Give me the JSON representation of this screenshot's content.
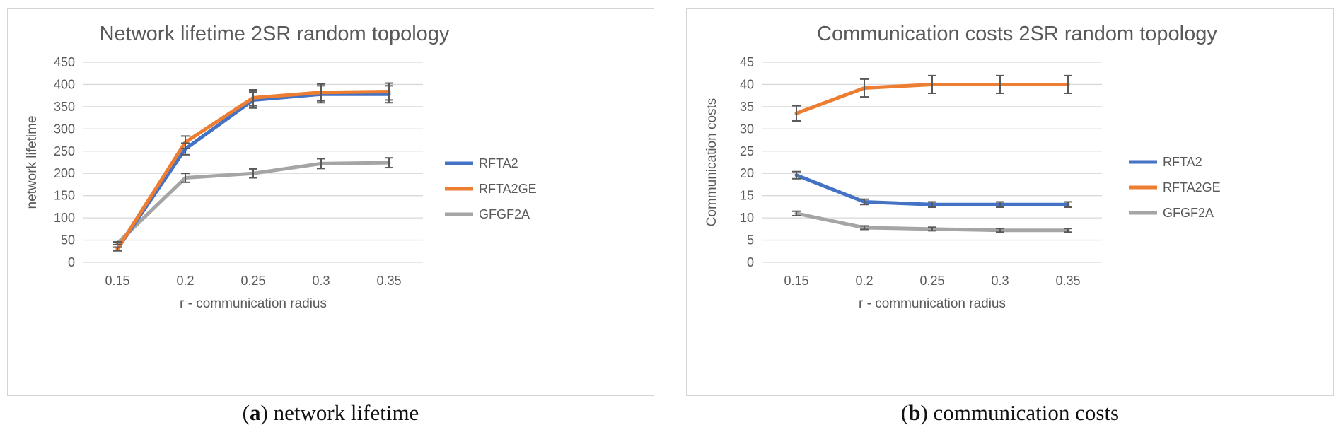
{
  "chart_data": [
    {
      "type": "line",
      "title": "Network lifetime 2SR random topology",
      "xlabel": "r - communication radius",
      "ylabel": "network lifetime",
      "categories": [
        "0.15",
        "0.2",
        "0.25",
        "0.3",
        "0.35"
      ],
      "ylim": [
        0,
        450
      ],
      "yticks": [
        0,
        50,
        100,
        150,
        200,
        250,
        300,
        350,
        400,
        450
      ],
      "grid": true,
      "legend_position": "right",
      "series": [
        {
          "name": "RFTA2",
          "color": "#4472c4",
          "values": [
            30,
            255,
            365,
            378,
            378
          ],
          "errors": [
            4,
            13,
            18,
            19,
            19
          ]
        },
        {
          "name": "RFTA2GE",
          "color": "#ed7d31",
          "values": [
            30,
            270,
            370,
            382,
            384
          ],
          "errors": [
            4,
            14,
            18,
            19,
            19
          ]
        },
        {
          "name": "GFGF2A",
          "color": "#a5a5a5",
          "values": [
            43,
            190,
            200,
            222,
            224
          ],
          "errors": [
            3,
            10,
            10,
            11,
            11
          ]
        }
      ],
      "caption_letter": "a",
      "caption_text": " network lifetime"
    },
    {
      "type": "line",
      "title": "Communication costs 2SR random topology",
      "xlabel": "r - communication radius",
      "ylabel": "Communication costs",
      "categories": [
        "0.15",
        "0.2",
        "0.25",
        "0.3",
        "0.35"
      ],
      "ylim": [
        0,
        45
      ],
      "yticks": [
        0,
        5,
        10,
        15,
        20,
        25,
        30,
        35,
        40,
        45
      ],
      "grid": true,
      "legend_position": "right",
      "series": [
        {
          "name": "RFTA2",
          "color": "#4472c4",
          "values": [
            19.6,
            13.6,
            13.0,
            13.0,
            13.0
          ],
          "errors": [
            0.8,
            0.6,
            0.6,
            0.6,
            0.6
          ]
        },
        {
          "name": "RFTA2GE",
          "color": "#ed7d31",
          "values": [
            33.5,
            39.2,
            40.0,
            40.0,
            40.0
          ],
          "errors": [
            1.7,
            2.0,
            2.0,
            2.0,
            2.0
          ]
        },
        {
          "name": "GFGF2A",
          "color": "#a5a5a5",
          "values": [
            11.0,
            7.8,
            7.5,
            7.2,
            7.2
          ],
          "errors": [
            0.5,
            0.4,
            0.4,
            0.4,
            0.4
          ]
        }
      ],
      "caption_letter": "b",
      "caption_text": " communication costs"
    }
  ]
}
